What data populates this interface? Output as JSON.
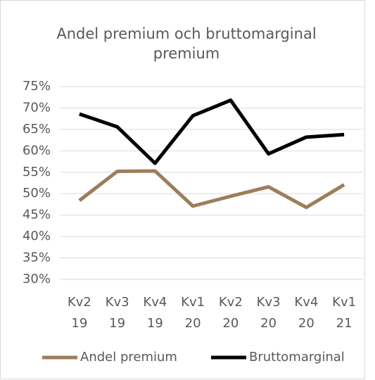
{
  "chart_data": {
    "type": "line",
    "title": "Andel premium och bruttomarginal premium",
    "categories": [
      "Kv2 19",
      "Kv3 19",
      "Kv4 19",
      "Kv1 20",
      "Kv2 20",
      "Kv3 20",
      "Kv4 20",
      "Kv1 21"
    ],
    "series": [
      {
        "name": "Andel premium",
        "color": "#9c7e5a",
        "values": [
          48.4,
          55.2,
          55.3,
          47.1,
          49.4,
          51.6,
          46.8,
          52.1
        ]
      },
      {
        "name": "Bruttomarginal",
        "color": "#000000",
        "values": [
          68.6,
          65.6,
          57.1,
          68.2,
          71.8,
          59.3,
          63.2,
          63.8
        ]
      }
    ],
    "ylim": [
      30,
      75
    ],
    "yticks": [
      {
        "value": 30,
        "label": "30%"
      },
      {
        "value": 35,
        "label": "35%"
      },
      {
        "value": 40,
        "label": "40%"
      },
      {
        "value": 45,
        "label": "45%"
      },
      {
        "value": 50,
        "label": "50%"
      },
      {
        "value": 55,
        "label": "55%"
      },
      {
        "value": 60,
        "label": "60%"
      },
      {
        "value": 65,
        "label": "65%"
      },
      {
        "value": 70,
        "label": "70%"
      },
      {
        "value": 75,
        "label": "75%"
      }
    ],
    "grid": true,
    "legend": "bottom"
  }
}
